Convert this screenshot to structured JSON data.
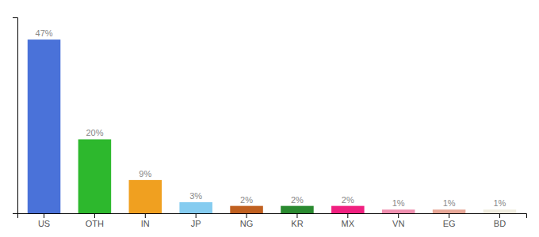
{
  "chart_data": {
    "type": "bar",
    "categories": [
      "US",
      "OTH",
      "IN",
      "JP",
      "NG",
      "KR",
      "MX",
      "VN",
      "EG",
      "BD"
    ],
    "values": [
      47,
      20,
      9,
      3,
      2,
      2,
      2,
      1,
      1,
      1
    ],
    "value_labels": [
      "47%",
      "20%",
      "9%",
      "3%",
      "2%",
      "2%",
      "2%",
      "1%",
      "1%",
      "1%"
    ],
    "colors": [
      "#4a72d9",
      "#2db82d",
      "#f0a020",
      "#85ccf0",
      "#c06020",
      "#2a8a30",
      "#f02080",
      "#f090b0",
      "#e8a898",
      "#f0ede0"
    ],
    "ylim": [
      0,
      53
    ],
    "data_labels": true,
    "tick_labels": "x",
    "grid": false
  }
}
